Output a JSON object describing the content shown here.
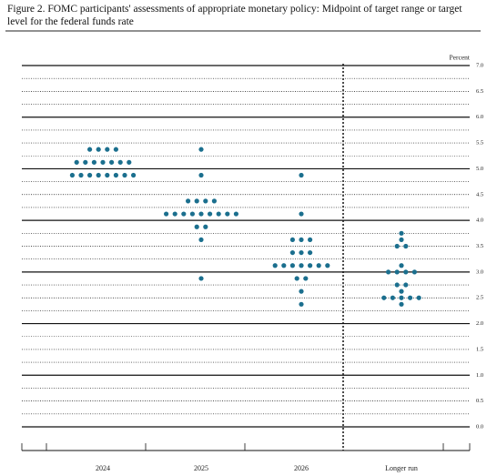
{
  "chart_data": {
    "type": "dot",
    "title": "Figure 2.  FOMC participants' assessments of appropriate monetary policy: Midpoint of target range or target level for the federal funds rate",
    "y_label": "Percent",
    "categories": [
      "2024",
      "2025",
      "2026",
      "Longer run"
    ],
    "color": "#1b6f8e",
    "ylim": [
      0,
      7
    ],
    "yticks": [
      {
        "value": 0,
        "label": "0.0"
      },
      {
        "value": 0.5,
        "label": "0.5"
      },
      {
        "value": 1,
        "label": "1.0"
      },
      {
        "value": 1.5,
        "label": "1.5"
      },
      {
        "value": 2,
        "label": "2.0"
      },
      {
        "value": 2.5,
        "label": "2.5"
      },
      {
        "value": 3,
        "label": "3.0"
      },
      {
        "value": 3.5,
        "label": "3.5"
      },
      {
        "value": 4,
        "label": "4.0"
      },
      {
        "value": 4.5,
        "label": "4.5"
      },
      {
        "value": 5,
        "label": "5.0"
      },
      {
        "value": 5.5,
        "label": "5.5"
      },
      {
        "value": 6,
        "label": "6.0"
      },
      {
        "value": 6.5,
        "label": "6.5"
      },
      {
        "value": 7,
        "label": "7.0"
      }
    ],
    "dots": [
      [
        {
          "value": 5.375,
          "count": 4
        },
        {
          "value": 5.125,
          "count": 7
        },
        {
          "value": 4.875,
          "count": 8
        }
      ],
      [
        {
          "value": 5.375,
          "count": 1
        },
        {
          "value": 4.875,
          "count": 1
        },
        {
          "value": 4.375,
          "count": 4
        },
        {
          "value": 4.125,
          "count": 9
        },
        {
          "value": 3.875,
          "count": 2
        },
        {
          "value": 3.625,
          "count": 1
        },
        {
          "value": 2.875,
          "count": 1
        }
      ],
      [
        {
          "value": 4.875,
          "count": 1
        },
        {
          "value": 4.125,
          "count": 1
        },
        {
          "value": 3.625,
          "count": 3
        },
        {
          "value": 3.375,
          "count": 3
        },
        {
          "value": 3.125,
          "count": 7
        },
        {
          "value": 2.875,
          "count": 2
        },
        {
          "value": 2.625,
          "count": 1
        },
        {
          "value": 2.375,
          "count": 1
        }
      ],
      [
        {
          "value": 3.75,
          "count": 1
        },
        {
          "value": 3.625,
          "count": 1
        },
        {
          "value": 3.5,
          "count": 2
        },
        {
          "value": 3.125,
          "count": 1
        },
        {
          "value": 3,
          "count": 4
        },
        {
          "value": 2.75,
          "count": 2
        },
        {
          "value": 2.625,
          "count": 1
        },
        {
          "value": 2.5,
          "count": 5
        },
        {
          "value": 2.375,
          "count": 1
        }
      ]
    ]
  }
}
